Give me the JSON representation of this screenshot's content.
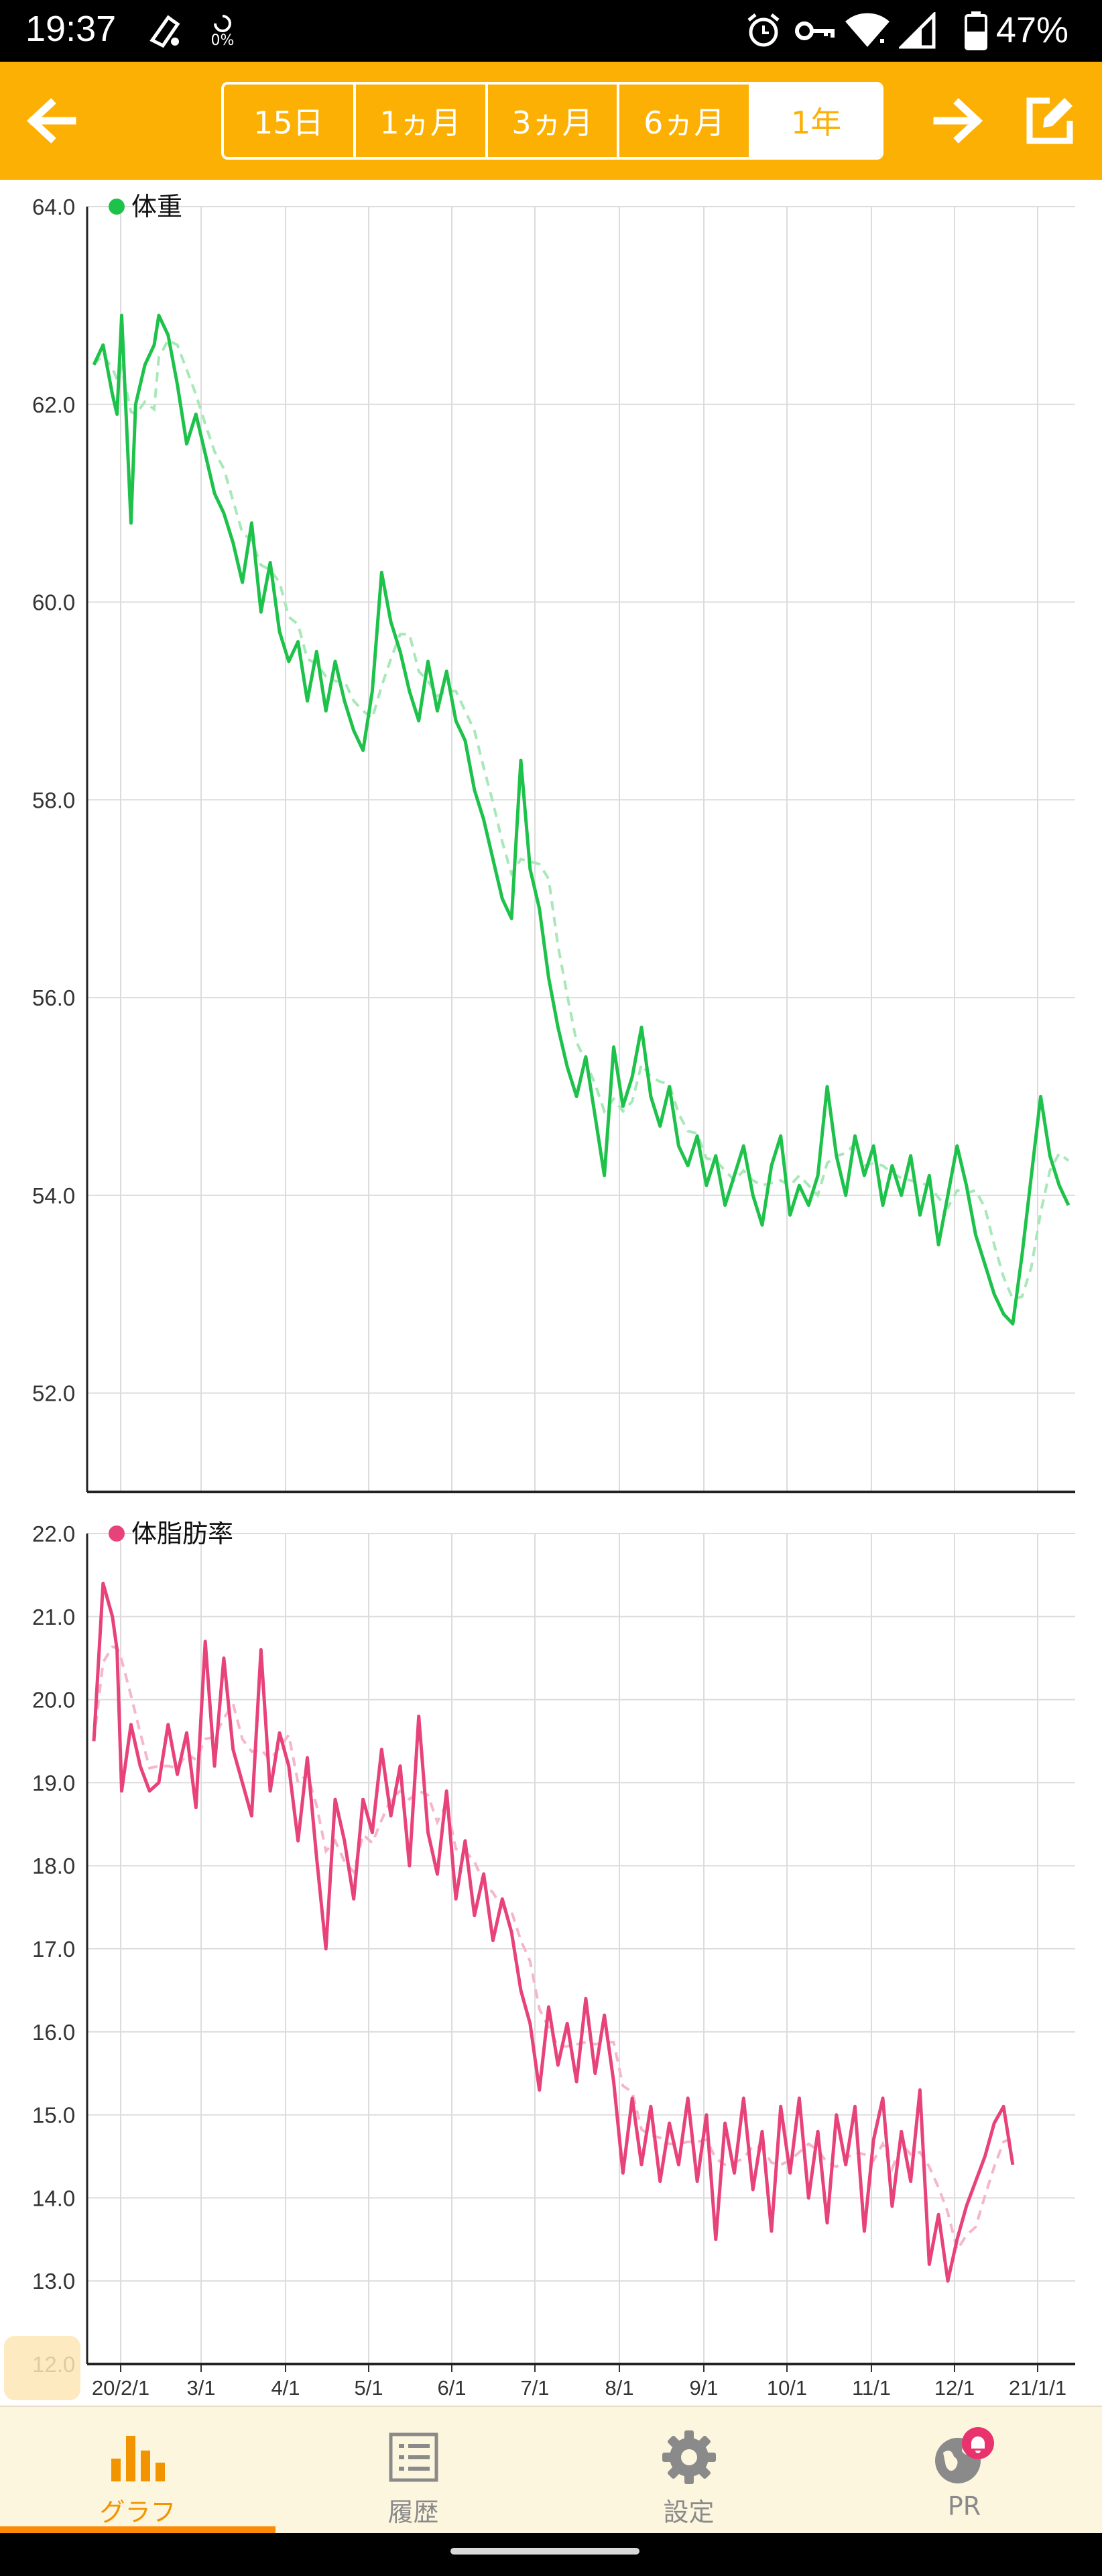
{
  "status_bar": {
    "time": "19:37",
    "data_usage": "0%",
    "battery_percent": "47%"
  },
  "toolbar": {
    "back_icon": "arrow-left-icon",
    "forward_icon": "arrow-right-icon",
    "edit_icon": "edit-icon",
    "period_tabs": [
      {
        "label": "15日",
        "active": false
      },
      {
        "label": "1ヵ月",
        "active": false
      },
      {
        "label": "3ヵ月",
        "active": false
      },
      {
        "label": "6ヵ月",
        "active": false
      },
      {
        "label": "1年",
        "active": true
      }
    ]
  },
  "chart_data": [
    {
      "type": "line",
      "legend": "体重",
      "ylim": [
        51.0,
        64.0
      ],
      "y_ticks": [
        "64.0",
        "62.0",
        "60.0",
        "58.0",
        "56.0",
        "54.0",
        "52.0"
      ],
      "x_ticks": [
        "20/2/1",
        "3/1",
        "4/1",
        "5/1",
        "6/1",
        "7/1",
        "8/1",
        "9/1",
        "10/1",
        "11/1",
        "12/1",
        "21/1/1"
      ],
      "grid": true,
      "colors": {
        "line": "#1ec24b",
        "trend": "#a8e8b8"
      },
      "series": [
        {
          "values": [
            [
              0,
              62.4
            ],
            [
              2,
              62.6
            ],
            [
              4,
              62.1
            ],
            [
              5,
              61.9
            ],
            [
              6,
              62.9
            ],
            [
              8,
              60.8
            ],
            [
              9,
              62.0
            ],
            [
              11,
              62.4
            ],
            [
              13,
              62.6
            ],
            [
              14,
              62.9
            ],
            [
              16,
              62.7
            ],
            [
              18,
              62.2
            ],
            [
              20,
              61.6
            ],
            [
              22,
              61.9
            ],
            [
              24,
              61.5
            ],
            [
              26,
              61.1
            ],
            [
              28,
              60.9
            ],
            [
              30,
              60.6
            ],
            [
              32,
              60.2
            ],
            [
              34,
              60.8
            ],
            [
              36,
              59.9
            ],
            [
              38,
              60.4
            ],
            [
              40,
              59.7
            ],
            [
              42,
              59.4
            ],
            [
              44,
              59.6
            ],
            [
              46,
              59.0
            ],
            [
              48,
              59.5
            ],
            [
              50,
              58.9
            ],
            [
              52,
              59.4
            ],
            [
              54,
              59.0
            ],
            [
              56,
              58.7
            ],
            [
              58,
              58.5
            ],
            [
              60,
              59.1
            ],
            [
              62,
              60.3
            ],
            [
              64,
              59.8
            ],
            [
              66,
              59.5
            ],
            [
              68,
              59.1
            ],
            [
              70,
              58.8
            ],
            [
              72,
              59.4
            ],
            [
              74,
              58.9
            ],
            [
              76,
              59.3
            ],
            [
              78,
              58.8
            ],
            [
              80,
              58.6
            ],
            [
              82,
              58.1
            ],
            [
              84,
              57.8
            ],
            [
              86,
              57.4
            ],
            [
              88,
              57.0
            ],
            [
              90,
              56.8
            ],
            [
              92,
              58.4
            ],
            [
              94,
              57.3
            ],
            [
              96,
              56.9
            ],
            [
              98,
              56.2
            ],
            [
              100,
              55.7
            ],
            [
              102,
              55.3
            ],
            [
              104,
              55.0
            ],
            [
              106,
              55.4
            ],
            [
              108,
              54.8
            ],
            [
              110,
              54.2
            ],
            [
              112,
              55.5
            ],
            [
              114,
              54.9
            ],
            [
              116,
              55.2
            ],
            [
              118,
              55.7
            ],
            [
              120,
              55.0
            ],
            [
              122,
              54.7
            ],
            [
              124,
              55.1
            ],
            [
              126,
              54.5
            ],
            [
              128,
              54.3
            ],
            [
              130,
              54.6
            ],
            [
              132,
              54.1
            ],
            [
              134,
              54.4
            ],
            [
              136,
              53.9
            ],
            [
              138,
              54.2
            ],
            [
              140,
              54.5
            ],
            [
              142,
              54.0
            ],
            [
              144,
              53.7
            ],
            [
              146,
              54.3
            ],
            [
              148,
              54.6
            ],
            [
              150,
              53.8
            ],
            [
              152,
              54.1
            ],
            [
              154,
              53.9
            ],
            [
              156,
              54.2
            ],
            [
              158,
              55.1
            ],
            [
              160,
              54.4
            ],
            [
              162,
              54.0
            ],
            [
              164,
              54.6
            ],
            [
              166,
              54.2
            ],
            [
              168,
              54.5
            ],
            [
              170,
              53.9
            ],
            [
              172,
              54.3
            ],
            [
              174,
              54.0
            ],
            [
              176,
              54.4
            ],
            [
              178,
              53.8
            ],
            [
              180,
              54.2
            ],
            [
              182,
              53.5
            ],
            [
              184,
              54.0
            ],
            [
              186,
              54.5
            ],
            [
              188,
              54.1
            ],
            [
              190,
              53.6
            ],
            [
              192,
              53.3
            ],
            [
              194,
              53.0
            ],
            [
              196,
              52.8
            ],
            [
              198,
              52.7
            ],
            [
              200,
              53.4
            ],
            [
              202,
              54.2
            ],
            [
              204,
              55.0
            ],
            [
              206,
              54.4
            ],
            [
              208,
              54.1
            ],
            [
              210,
              53.9
            ]
          ]
        }
      ]
    },
    {
      "type": "line",
      "legend": "体脂肪率",
      "ylim": [
        12.0,
        22.0
      ],
      "y_ticks": [
        "22.0",
        "21.0",
        "20.0",
        "19.0",
        "18.0",
        "17.0",
        "16.0",
        "15.0",
        "14.0",
        "13.0",
        "12.0"
      ],
      "x_ticks": [
        "20/2/1",
        "3/1",
        "4/1",
        "5/1",
        "6/1",
        "7/1",
        "8/1",
        "9/1",
        "10/1",
        "11/1",
        "12/1",
        "21/1/1"
      ],
      "grid": true,
      "colors": {
        "line": "#e8427a",
        "trend": "#f5b6cb"
      },
      "series": [
        {
          "values": [
            [
              0,
              19.5
            ],
            [
              2,
              21.4
            ],
            [
              4,
              21.0
            ],
            [
              5,
              20.6
            ],
            [
              6,
              18.9
            ],
            [
              8,
              19.7
            ],
            [
              10,
              19.2
            ],
            [
              12,
              18.9
            ],
            [
              14,
              19.0
            ],
            [
              16,
              19.7
            ],
            [
              18,
              19.1
            ],
            [
              20,
              19.6
            ],
            [
              22,
              18.7
            ],
            [
              24,
              20.7
            ],
            [
              26,
              19.2
            ],
            [
              28,
              20.5
            ],
            [
              30,
              19.4
            ],
            [
              32,
              19.0
            ],
            [
              34,
              18.6
            ],
            [
              36,
              20.6
            ],
            [
              38,
              18.9
            ],
            [
              40,
              19.6
            ],
            [
              42,
              19.2
            ],
            [
              44,
              18.3
            ],
            [
              46,
              19.3
            ],
            [
              48,
              18.1
            ],
            [
              50,
              17.0
            ],
            [
              52,
              18.8
            ],
            [
              54,
              18.3
            ],
            [
              56,
              17.6
            ],
            [
              58,
              18.8
            ],
            [
              60,
              18.4
            ],
            [
              62,
              19.4
            ],
            [
              64,
              18.6
            ],
            [
              66,
              19.2
            ],
            [
              68,
              18.0
            ],
            [
              70,
              19.8
            ],
            [
              72,
              18.4
            ],
            [
              74,
              17.9
            ],
            [
              76,
              18.9
            ],
            [
              78,
              17.6
            ],
            [
              80,
              18.3
            ],
            [
              82,
              17.4
            ],
            [
              84,
              17.9
            ],
            [
              86,
              17.1
            ],
            [
              88,
              17.6
            ],
            [
              90,
              17.2
            ],
            [
              92,
              16.5
            ],
            [
              94,
              16.1
            ],
            [
              96,
              15.3
            ],
            [
              98,
              16.3
            ],
            [
              100,
              15.6
            ],
            [
              102,
              16.1
            ],
            [
              104,
              15.4
            ],
            [
              106,
              16.4
            ],
            [
              108,
              15.5
            ],
            [
              110,
              16.2
            ],
            [
              112,
              15.4
            ],
            [
              114,
              14.3
            ],
            [
              116,
              15.2
            ],
            [
              118,
              14.4
            ],
            [
              120,
              15.1
            ],
            [
              122,
              14.2
            ],
            [
              124,
              14.9
            ],
            [
              126,
              14.4
            ],
            [
              128,
              15.2
            ],
            [
              130,
              14.2
            ],
            [
              132,
              15.0
            ],
            [
              134,
              13.5
            ],
            [
              136,
              14.9
            ],
            [
              138,
              14.3
            ],
            [
              140,
              15.2
            ],
            [
              142,
              14.1
            ],
            [
              144,
              14.8
            ],
            [
              146,
              13.6
            ],
            [
              148,
              15.1
            ],
            [
              150,
              14.3
            ],
            [
              152,
              15.2
            ],
            [
              154,
              14.0
            ],
            [
              156,
              14.8
            ],
            [
              158,
              13.7
            ],
            [
              160,
              15.0
            ],
            [
              162,
              14.4
            ],
            [
              164,
              15.1
            ],
            [
              166,
              13.6
            ],
            [
              168,
              14.7
            ],
            [
              170,
              15.2
            ],
            [
              172,
              13.9
            ],
            [
              174,
              14.8
            ],
            [
              176,
              14.2
            ],
            [
              178,
              15.3
            ],
            [
              180,
              13.2
            ],
            [
              182,
              13.8
            ],
            [
              184,
              13.0
            ],
            [
              186,
              13.5
            ],
            [
              188,
              13.9
            ],
            [
              190,
              14.2
            ],
            [
              192,
              14.5
            ],
            [
              194,
              14.9
            ],
            [
              196,
              15.1
            ],
            [
              198,
              14.4
            ]
          ]
        }
      ]
    }
  ],
  "bottom_nav": {
    "items": [
      {
        "label": "グラフ",
        "icon": "bar-chart-icon",
        "active": true
      },
      {
        "label": "履歴",
        "icon": "list-icon",
        "active": false
      },
      {
        "label": "設定",
        "icon": "gear-icon",
        "active": false
      },
      {
        "label": "PR",
        "icon": "globe-bell-icon",
        "active": false
      }
    ]
  }
}
